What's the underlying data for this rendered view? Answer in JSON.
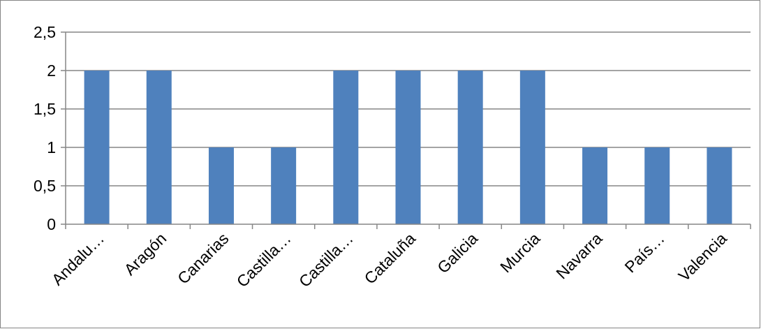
{
  "chart_data": {
    "type": "bar",
    "categories": [
      "Andalu…",
      "Aragón",
      "Canarias",
      "Castilla…",
      "Castilla…",
      "Cataluña",
      "Galicia",
      "Murcia",
      "Navarra",
      "País…",
      "Valencia"
    ],
    "values": [
      2,
      2,
      1,
      1,
      2,
      2,
      2,
      2,
      1,
      1,
      1
    ],
    "yticks": [
      "0",
      "0,5",
      "1",
      "1,5",
      "2",
      "2,5"
    ],
    "ylim": [
      0,
      2.5
    ],
    "grid": true,
    "legend": "none",
    "colors": {
      "bar": "#4f81bd",
      "grid": "#868686",
      "axis": "#868686",
      "border": "#868686"
    }
  }
}
